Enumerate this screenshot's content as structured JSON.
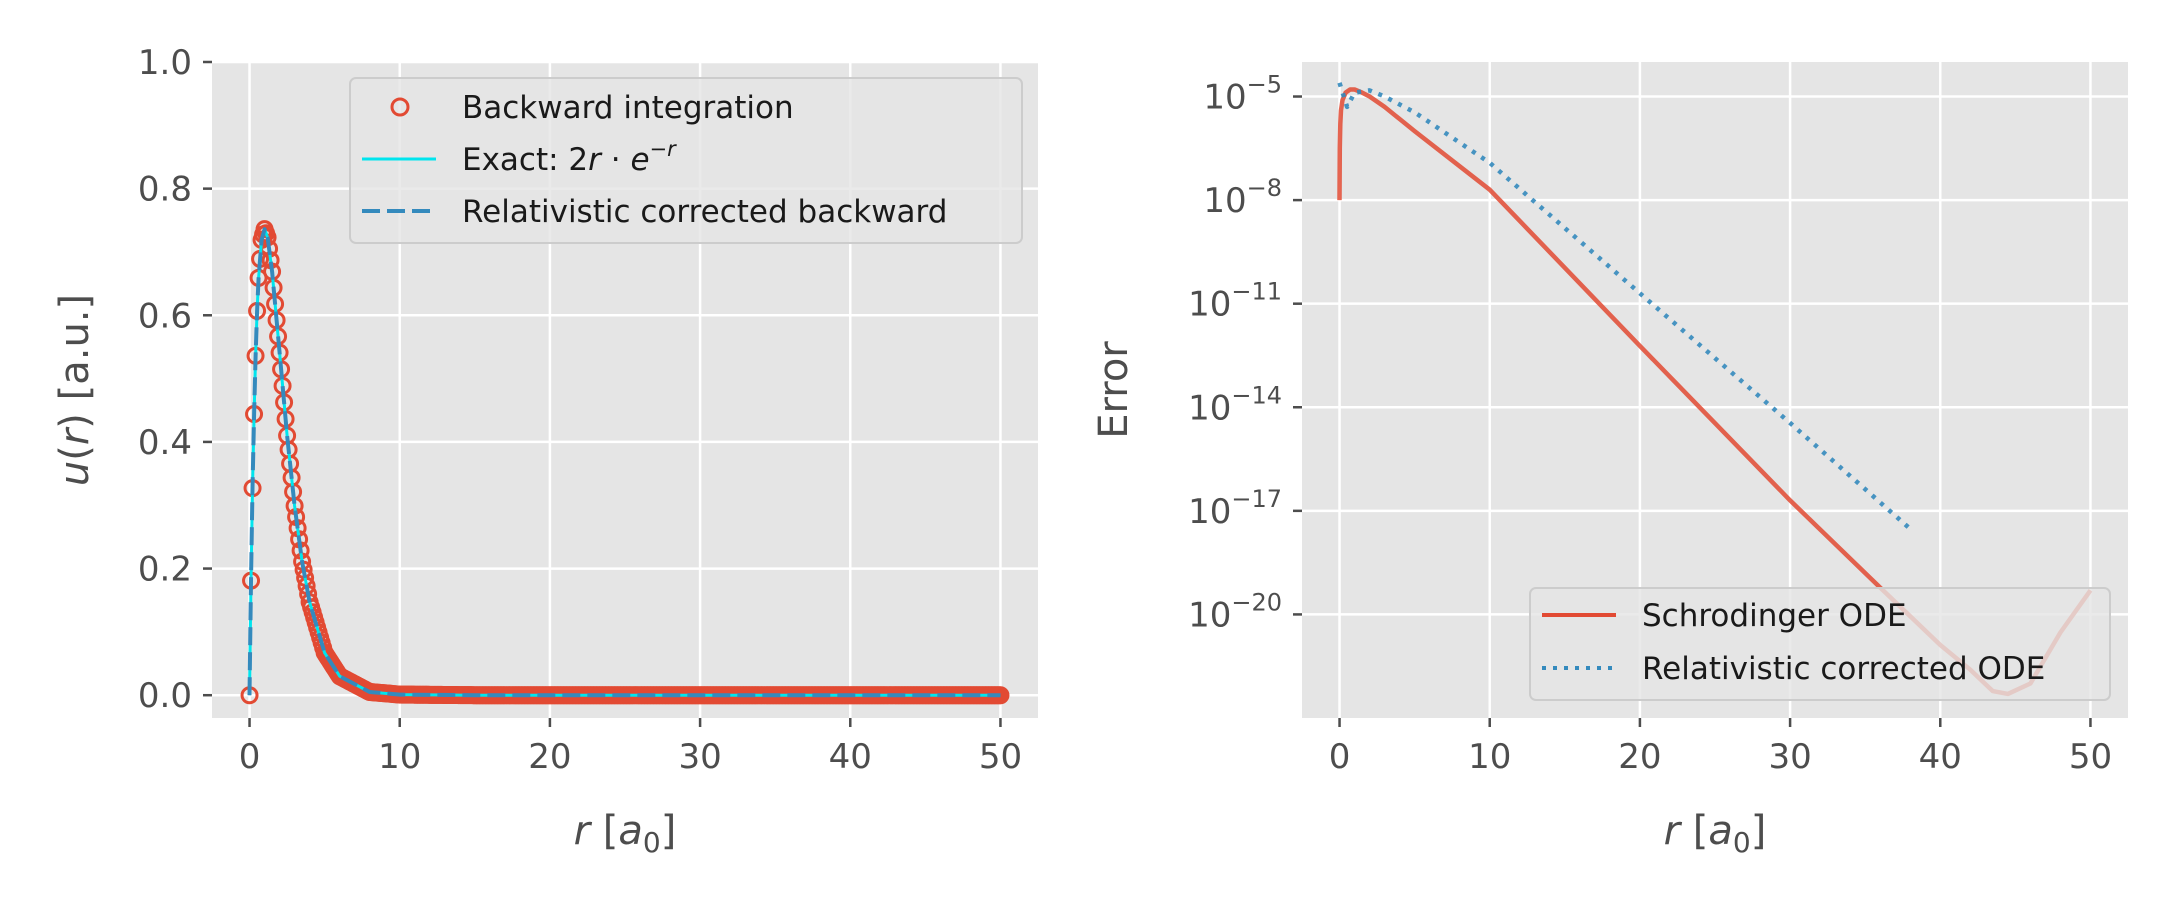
{
  "chart_data": [
    {
      "type": "line",
      "title": "",
      "xlabel": "r [a₀]",
      "ylabel": "u(r) [a.u.]",
      "xlim": [
        -2.5,
        52.5
      ],
      "ylim": [
        -0.036,
        1.0
      ],
      "x_ticks": [
        0,
        10,
        20,
        30,
        40,
        50
      ],
      "x_tick_labels": [
        "0",
        "10",
        "20",
        "30",
        "40",
        "50"
      ],
      "y_ticks": [
        0.0,
        0.2,
        0.4,
        0.6,
        0.8,
        1.0
      ],
      "y_tick_labels": [
        "0.0",
        "0.2",
        "0.4",
        "0.6",
        "0.8",
        "1.0"
      ],
      "grid": true,
      "legend_position": "top-right",
      "series": [
        {
          "name": "Backward integration",
          "style": "open-circle-markers",
          "color": "#e24a33",
          "x": [
            0.0,
            0.1,
            0.2,
            0.3,
            0.4,
            0.5,
            0.6,
            0.8,
            1.0,
            1.2,
            1.5,
            2.0,
            2.5,
            3.0,
            3.5,
            4.0,
            5.0,
            6.0,
            8.0,
            10.0,
            15.0,
            20.0,
            30.0,
            40.0,
            50.0
          ],
          "y": [
            0.0,
            0.181,
            0.327,
            0.444,
            0.536,
            0.607,
            0.659,
            0.719,
            0.736,
            0.723,
            0.669,
            0.541,
            0.41,
            0.299,
            0.211,
            0.147,
            0.067,
            0.03,
            0.005,
            0.001,
            0.0,
            0.0,
            0.0,
            0.0,
            0.0
          ]
        },
        {
          "name": "Exact: 2r·e⁻ʳ",
          "style": "solid",
          "color": "#00e5ee",
          "x": [
            0.0,
            0.1,
            0.2,
            0.3,
            0.4,
            0.5,
            0.6,
            0.8,
            1.0,
            1.2,
            1.5,
            2.0,
            2.5,
            3.0,
            3.5,
            4.0,
            5.0,
            6.0,
            8.0,
            10.0,
            15.0,
            20.0,
            30.0,
            40.0,
            50.0
          ],
          "y": [
            0.0,
            0.181,
            0.327,
            0.444,
            0.536,
            0.607,
            0.659,
            0.719,
            0.736,
            0.723,
            0.669,
            0.541,
            0.41,
            0.299,
            0.211,
            0.147,
            0.067,
            0.03,
            0.005,
            0.001,
            0.0,
            0.0,
            0.0,
            0.0,
            0.0
          ]
        },
        {
          "name": "Relativistic corrected backward",
          "style": "dashed",
          "color": "#348abd",
          "x": [
            0.0,
            0.1,
            0.2,
            0.3,
            0.4,
            0.5,
            0.6,
            0.8,
            1.0,
            1.2,
            1.5,
            2.0,
            2.5,
            3.0,
            3.5,
            4.0,
            5.0,
            6.0,
            8.0,
            10.0,
            15.0,
            20.0,
            30.0,
            40.0,
            50.0
          ],
          "y": [
            0.0,
            0.181,
            0.327,
            0.444,
            0.536,
            0.607,
            0.659,
            0.719,
            0.736,
            0.723,
            0.669,
            0.541,
            0.41,
            0.299,
            0.211,
            0.147,
            0.067,
            0.03,
            0.005,
            0.001,
            0.0,
            0.0,
            0.0,
            0.0,
            0.0
          ]
        }
      ]
    },
    {
      "type": "line",
      "title": "",
      "xlabel": "r [a₀]",
      "ylabel": "Error",
      "yscale": "log",
      "xlim": [
        -2.5,
        52.5
      ],
      "ylim": [
        1e-23,
        0.0001
      ],
      "x_ticks": [
        0,
        10,
        20,
        30,
        40,
        50
      ],
      "x_tick_labels": [
        "0",
        "10",
        "20",
        "30",
        "40",
        "50"
      ],
      "y_ticks": [
        1e-05,
        1e-08,
        1e-11,
        1e-14,
        1e-17,
        1e-20
      ],
      "y_tick_labels": [
        {
          "base": "10",
          "exp": "−5"
        },
        {
          "base": "10",
          "exp": "−8"
        },
        {
          "base": "10",
          "exp": "−11"
        },
        {
          "base": "10",
          "exp": "−14"
        },
        {
          "base": "10",
          "exp": "−17"
        },
        {
          "base": "10",
          "exp": "−20"
        }
      ],
      "grid": true,
      "legend_position": "lower-right",
      "series": [
        {
          "name": "Schrodinger ODE",
          "style": "solid",
          "color": "#e24a33",
          "x": [
            0.0,
            0.02,
            0.05,
            0.1,
            0.2,
            0.4,
            0.7,
            1.0,
            1.5,
            2.0,
            3.0,
            5.0,
            10.0,
            20.0,
            30.0,
            36.0,
            40.0,
            42.0,
            43.5,
            44.5,
            46.0,
            48.0,
            50.0
          ],
          "y": [
            1e-08,
            3.2e-07,
            1.6e-06,
            4e-06,
            7.9e-06,
            1.3e-05,
            1.6e-05,
            1.6e-05,
            1.3e-05,
            1e-05,
            5e-06,
            1e-06,
            2e-08,
            6e-13,
            2e-17,
            6e-20,
            1.3e-21,
            2.5e-22,
            6e-23,
            5e-23,
            1e-22,
            3e-21,
            5e-20
          ]
        },
        {
          "name": "Relativistic corrected ODE",
          "style": "dotted",
          "color": "#348abd",
          "x": [
            0.0,
            0.5,
            1.0,
            2.0,
            3.0,
            5.0,
            10.0,
            20.0,
            30.0,
            38.0
          ],
          "y": [
            2.5e-05,
            5e-06,
            1.3e-05,
            1.5e-05,
            1e-05,
            3.5e-06,
            1.2e-07,
            2e-11,
            3.5e-15,
            3e-18
          ]
        }
      ]
    }
  ]
}
